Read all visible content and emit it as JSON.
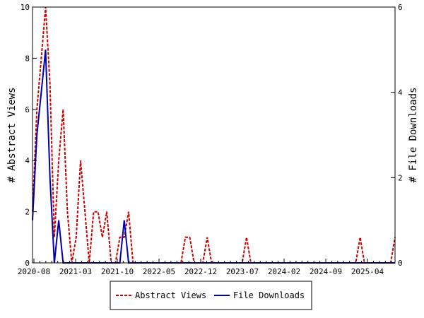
{
  "chart_data": {
    "type": "line",
    "title": "",
    "x_tick_labels": [
      "2020-08",
      "2021-03",
      "2021-10",
      "2022-05",
      "2022-12",
      "2023-07",
      "2024-02",
      "2024-09",
      "2025-04"
    ],
    "y_left": {
      "label": "# Abstract Views",
      "ylim": [
        0,
        10
      ],
      "ticks": [
        "0",
        "2",
        "4",
        "6",
        "8",
        "10"
      ]
    },
    "y_right": {
      "label": "# File Downloads",
      "ylim": [
        0,
        6
      ],
      "ticks": [
        "0",
        "2",
        "4",
        "6"
      ]
    },
    "legend_position": "bottom-center",
    "grid": false,
    "series": [
      {
        "name": "Abstract Views",
        "axis": "left",
        "color": "#cc0000",
        "style": "dashed",
        "values": [
          2,
          6,
          8,
          10,
          7,
          1,
          4,
          6,
          2,
          0,
          1,
          4,
          2,
          0,
          2,
          2,
          1,
          2,
          0,
          0,
          1,
          1,
          2,
          0,
          0,
          0,
          0,
          0,
          0,
          0,
          0,
          0,
          0,
          0,
          0,
          1,
          1,
          0,
          0,
          0,
          1,
          0,
          0,
          0,
          0,
          0,
          0,
          0,
          0,
          1,
          0,
          0,
          0,
          0,
          0,
          0,
          0,
          0,
          0,
          0,
          0,
          0,
          0,
          0,
          0,
          0,
          0,
          0,
          0,
          0,
          0,
          0,
          0,
          0,
          0,
          1,
          0,
          0,
          0,
          0,
          0,
          0,
          0,
          1
        ]
      },
      {
        "name": "File Downloads",
        "axis": "right",
        "color": "#0000aa",
        "style": "solid",
        "values": [
          1,
          3,
          4,
          5,
          2,
          0,
          1,
          0,
          0,
          0,
          0,
          0,
          0,
          0,
          0,
          0,
          0,
          0,
          0,
          0,
          0,
          1,
          0,
          0,
          0,
          0,
          0,
          0,
          0,
          0,
          0,
          0,
          0,
          0,
          0,
          0,
          0,
          0,
          0,
          0,
          0,
          0,
          0,
          0,
          0,
          0,
          0,
          0,
          0,
          0,
          0,
          0,
          0,
          0,
          0,
          0,
          0,
          0,
          0,
          0,
          0,
          0,
          0,
          0,
          0,
          0,
          0,
          0,
          0,
          0,
          0,
          0,
          0,
          0,
          0,
          0,
          0,
          0,
          0,
          0,
          0,
          0,
          0,
          0
        ]
      }
    ]
  }
}
